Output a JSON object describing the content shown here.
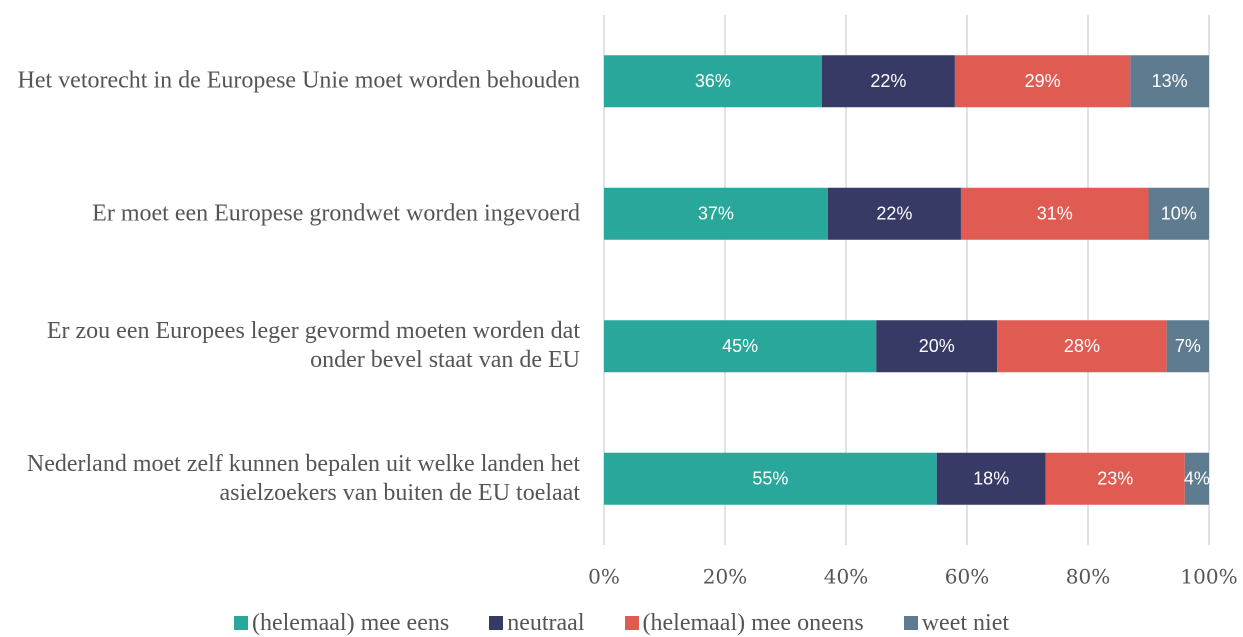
{
  "chart_data": {
    "type": "stacked-bar-horizontal",
    "categories": [
      "Het vetorecht in de Europese Unie moet worden behouden",
      "Er moet een Europese grondwet worden ingevoerd",
      "Er zou een Europees leger gevormd moeten worden dat onder bevel staat van de EU",
      "Nederland moet zelf kunnen bepalen uit welke landen het asielzoekers van buiten de EU toelaat"
    ],
    "series": [
      {
        "name": "(helemaal) mee eens",
        "color": "#2aa79b",
        "values": [
          36,
          37,
          45,
          55
        ],
        "value_labels": [
          "36%",
          "37%",
          "45%",
          "55%"
        ]
      },
      {
        "name": "neutraal",
        "color": "#383a66",
        "values": [
          22,
          22,
          20,
          18
        ],
        "value_labels": [
          "22%",
          "22%",
          "20%",
          "18%"
        ]
      },
      {
        "name": "(helemaal) mee oneens",
        "color": "#e05c53",
        "values": [
          29,
          31,
          28,
          23
        ],
        "value_labels": [
          "29%",
          "31%",
          "28%",
          "23%"
        ]
      },
      {
        "name": "weet niet",
        "color": "#5f7b8f",
        "values": [
          13,
          10,
          7,
          4
        ],
        "value_labels": [
          "13%",
          "10%",
          "7%",
          "4%"
        ]
      }
    ],
    "xlim": [
      0,
      100
    ],
    "xticks": [
      {
        "value": 0,
        "label": "0%"
      },
      {
        "value": 20,
        "label": "20%"
      },
      {
        "value": 40,
        "label": "40%"
      },
      {
        "value": 60,
        "label": "60%"
      },
      {
        "value": 80,
        "label": "80%"
      },
      {
        "value": 100,
        "label": "100%"
      }
    ],
    "grid": true,
    "legend": "bottom"
  }
}
